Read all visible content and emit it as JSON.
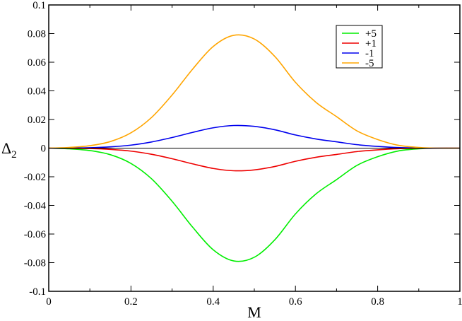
{
  "chart_data": {
    "type": "line",
    "title": "",
    "xlabel": "M",
    "ylabel": "Δ",
    "ylabel_sub": "2",
    "xlim": [
      0,
      1
    ],
    "ylim": [
      -0.1,
      0.1
    ],
    "grid": false,
    "legend_position": "top-right",
    "x_ticks": [
      0,
      0.2,
      0.4,
      0.6,
      0.8,
      1
    ],
    "x_tick_labels": [
      "0",
      "0.2",
      "0.4",
      "0.6",
      "0.8",
      "1"
    ],
    "y_ticks": [
      -0.1,
      -0.08,
      -0.06,
      -0.04,
      -0.02,
      0,
      0.02,
      0.04,
      0.06,
      0.08,
      0.1
    ],
    "y_tick_labels": [
      "-0.1",
      "-0.08",
      "-0.06",
      "-0.04",
      "-0.02",
      "0",
      "0.02",
      "0.04",
      "0.06",
      "0.08",
      "0.1"
    ],
    "x": [
      0,
      0.05,
      0.1,
      0.15,
      0.2,
      0.25,
      0.3,
      0.35,
      0.4,
      0.45,
      0.5,
      0.55,
      0.6,
      0.65,
      0.7,
      0.75,
      0.8,
      0.85,
      0.9,
      0.95,
      1
    ],
    "series": [
      {
        "name": "+5",
        "color": "#00ee00",
        "values": [
          0,
          -0.0005,
          -0.0017,
          -0.0046,
          -0.0107,
          -0.0214,
          -0.0371,
          -0.0552,
          -0.071,
          -0.0788,
          -0.0762,
          -0.064,
          -0.046,
          -0.032,
          -0.022,
          -0.012,
          -0.006,
          -0.002,
          -0.0005,
          0,
          0
        ]
      },
      {
        "name": "+1",
        "color": "#ee0000",
        "values": [
          0,
          -0.0001,
          -0.0003,
          -0.0009,
          -0.0021,
          -0.0043,
          -0.0074,
          -0.011,
          -0.0142,
          -0.0158,
          -0.0152,
          -0.0128,
          -0.0092,
          -0.0064,
          -0.0044,
          -0.0024,
          -0.0012,
          -0.0004,
          -0.0001,
          0,
          0
        ]
      },
      {
        "name": "-1",
        "color": "#0000ee",
        "values": [
          0,
          0.0001,
          0.0003,
          0.0009,
          0.0021,
          0.0043,
          0.0074,
          0.011,
          0.0142,
          0.0158,
          0.0152,
          0.0128,
          0.0092,
          0.0064,
          0.0044,
          0.0024,
          0.0012,
          0.0004,
          0.0001,
          0,
          0
        ]
      },
      {
        "name": "-5",
        "color": "#ffa500",
        "values": [
          0,
          0.0005,
          0.0017,
          0.0046,
          0.0107,
          0.0214,
          0.0371,
          0.0552,
          0.071,
          0.0788,
          0.0762,
          0.064,
          0.046,
          0.032,
          0.022,
          0.012,
          0.006,
          0.002,
          0.0005,
          0,
          0
        ]
      }
    ]
  }
}
